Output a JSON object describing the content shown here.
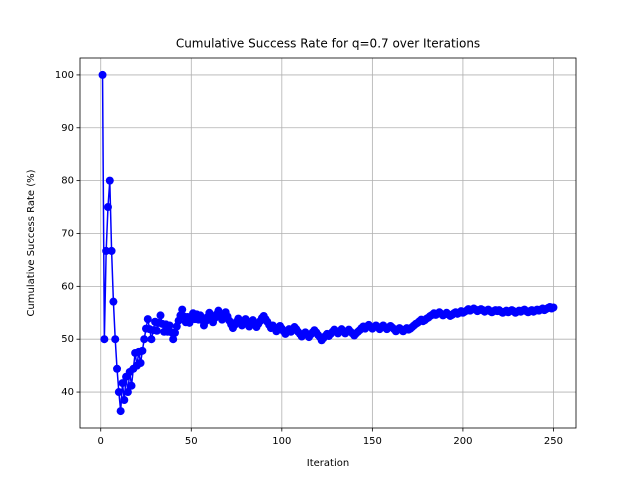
{
  "chart_data": {
    "type": "line",
    "title": "Cumulative Success Rate for q=0.7 over Iterations",
    "x_label": "Iteration",
    "y_label": "Cumulative Success Rate (%)",
    "xlim": [
      -11.45,
      262.45
    ],
    "ylim": [
      33.2,
      103.2
    ],
    "xticks": [
      0,
      50,
      100,
      150,
      200,
      250
    ],
    "yticks": [
      40,
      50,
      60,
      70,
      80,
      90,
      100
    ],
    "grid": true,
    "x": [
      1,
      2,
      3,
      4,
      5,
      6,
      7,
      8,
      9,
      10,
      11,
      12,
      13,
      14,
      15,
      16,
      17,
      18,
      19,
      20,
      21,
      22,
      23,
      24,
      25,
      26,
      27,
      28,
      29,
      30,
      31,
      32,
      33,
      34,
      35,
      36,
      37,
      38,
      39,
      40,
      41,
      42,
      43,
      44,
      45,
      46,
      47,
      48,
      49,
      50,
      51,
      52,
      53,
      54,
      55,
      56,
      57,
      58,
      59,
      60,
      61,
      62,
      63,
      64,
      65,
      66,
      67,
      68,
      69,
      70,
      71,
      72,
      73,
      74,
      75,
      76,
      77,
      78,
      79,
      80,
      81,
      82,
      83,
      84,
      85,
      86,
      87,
      88,
      89,
      90,
      91,
      92,
      93,
      94,
      95,
      96,
      97,
      98,
      99,
      100,
      101,
      102,
      103,
      104,
      105,
      106,
      107,
      108,
      109,
      110,
      111,
      112,
      113,
      114,
      115,
      116,
      117,
      118,
      119,
      120,
      121,
      122,
      123,
      124,
      125,
      126,
      127,
      128,
      129,
      130,
      131,
      132,
      133,
      134,
      135,
      136,
      137,
      138,
      139,
      140,
      141,
      142,
      143,
      144,
      145,
      146,
      147,
      148,
      149,
      150,
      151,
      152,
      153,
      154,
      155,
      156,
      157,
      158,
      159,
      160,
      161,
      162,
      163,
      164,
      165,
      166,
      167,
      168,
      169,
      170,
      171,
      172,
      173,
      174,
      175,
      176,
      177,
      178,
      179,
      180,
      181,
      182,
      183,
      184,
      185,
      186,
      187,
      188,
      189,
      190,
      191,
      192,
      193,
      194,
      195,
      196,
      197,
      198,
      199,
      200,
      201,
      202,
      203,
      204,
      205,
      206,
      207,
      208,
      209,
      210,
      211,
      212,
      213,
      214,
      215,
      216,
      217,
      218,
      219,
      220,
      221,
      222,
      223,
      224,
      225,
      226,
      227,
      228,
      229,
      230,
      231,
      232,
      233,
      234,
      235,
      236,
      237,
      238,
      239,
      240,
      241,
      242,
      243,
      244,
      245,
      246,
      247,
      248,
      249,
      250
    ],
    "series": [
      {
        "color": "#0000ff",
        "values": [
          100,
          50,
          66.7,
          75,
          80,
          66.7,
          57.1,
          50,
          44.4,
          40,
          36.4,
          41.7,
          38.5,
          42.9,
          40,
          43.8,
          41.2,
          44.4,
          47.4,
          45,
          47.6,
          45.5,
          47.8,
          50,
          52,
          53.8,
          51.9,
          50,
          51.7,
          53.3,
          51.6,
          53.1,
          54.5,
          52.9,
          51.4,
          52.8,
          51.4,
          52.6,
          51.3,
          50,
          51.2,
          52.4,
          53.5,
          54.5,
          55.6,
          54.3,
          53.2,
          54.2,
          53.1,
          54,
          54.9,
          53.8,
          54.7,
          53.7,
          54.5,
          53.6,
          52.6,
          53.4,
          54.2,
          55,
          54.1,
          53.2,
          54,
          54.7,
          55.4,
          54.5,
          53.7,
          54.4,
          55.1,
          54.3,
          53.5,
          52.8,
          52.1,
          52.7,
          53.3,
          53.9,
          53.2,
          52.6,
          53.2,
          53.8,
          53.1,
          52.4,
          53,
          53.6,
          52.9,
          52.3,
          52.9,
          53.4,
          54,
          54.4,
          53.8,
          53.3,
          52.7,
          52.1,
          52.6,
          52.1,
          51.5,
          52,
          52.5,
          52,
          51.5,
          51,
          51.5,
          51.9,
          51.4,
          51.9,
          52.3,
          51.9,
          51.4,
          51,
          50.5,
          50.9,
          51.3,
          50.9,
          50.4,
          50.9,
          51.3,
          51.7,
          51.3,
          50.8,
          50.4,
          49.8,
          50.2,
          50.6,
          51,
          50.6,
          51,
          51.4,
          51.8,
          51.5,
          51.1,
          51.5,
          51.9,
          51.5,
          51.1,
          51.5,
          51.8,
          51.4,
          51.1,
          50.7,
          51.1,
          51.4,
          51.7,
          52.1,
          52.4,
          52,
          52.4,
          52.7,
          52.3,
          52,
          52.3,
          52.6,
          52.3,
          51.9,
          52.3,
          52.6,
          52.2,
          51.9,
          52.2,
          52.5,
          52.2,
          51.9,
          51.5,
          51.8,
          52.1,
          51.8,
          51.5,
          51.8,
          52.1,
          51.8,
          52,
          52.3,
          52.6,
          52.9,
          53.1,
          53.4,
          53.7,
          53.4,
          53.6,
          53.9,
          54.1,
          54.4,
          54.6,
          54.9,
          54.6,
          54.8,
          55.1,
          54.8,
          54.5,
          54.7,
          55,
          54.7,
          54.4,
          54.6,
          54.9,
          55.1,
          54.8,
          55,
          55.3,
          55,
          55.2,
          55.4,
          55.7,
          55.4,
          55.6,
          55.8,
          55.6,
          55.3,
          55.5,
          55.7,
          55.5,
          55.2,
          55.4,
          55.6,
          55.3,
          55.1,
          55.3,
          55.5,
          55.3,
          55.5,
          55.2,
          55,
          55.2,
          55.4,
          55.1,
          55.3,
          55.5,
          55.3,
          55,
          55.2,
          55.4,
          55.2,
          55.4,
          55.6,
          55.3,
          55.1,
          55.3,
          55.5,
          55.2,
          55.4,
          55.6,
          55.4,
          55.6,
          55.8,
          55.5,
          55.7,
          55.9,
          56.1,
          55.8,
          56
        ]
      }
    ]
  }
}
